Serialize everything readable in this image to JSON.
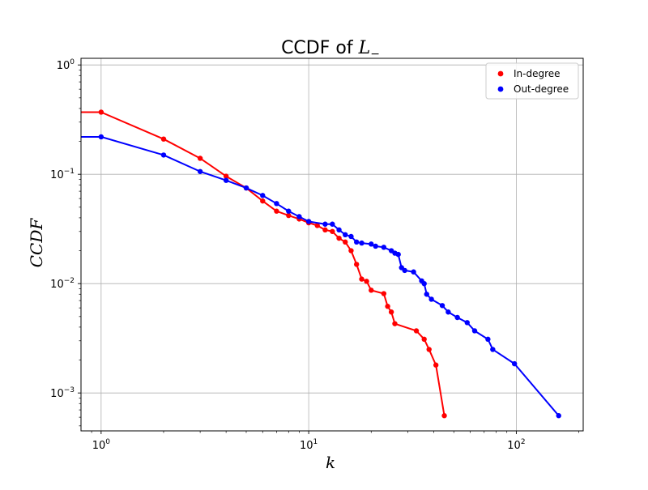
{
  "chart_data": {
    "type": "line",
    "title_text": "CCDF of ",
    "title_math": "L",
    "title_math_sub": "−",
    "xlabel": "k",
    "ylabel": "CCDF",
    "xscale": "log",
    "yscale": "log",
    "xlim": [
      0.8,
      210
    ],
    "ylim": [
      0.00045,
      1.15
    ],
    "grid": true,
    "legend_position": "top-right",
    "x_ticks": [
      {
        "value": 1,
        "base": "10",
        "exp": "0"
      },
      {
        "value": 10,
        "base": "10",
        "exp": "1"
      },
      {
        "value": 100,
        "base": "10",
        "exp": "2"
      }
    ],
    "y_ticks": [
      {
        "value": 1,
        "base": "10",
        "exp": "0"
      },
      {
        "value": 0.1,
        "base": "10",
        "exp": "−1"
      },
      {
        "value": 0.01,
        "base": "10",
        "exp": "−2"
      },
      {
        "value": 0.001,
        "base": "10",
        "exp": "−3"
      }
    ],
    "series": [
      {
        "name": "In-degree",
        "color": "#ff0000",
        "x": [
          1,
          2,
          3,
          4,
          5,
          6,
          7,
          8,
          9,
          10,
          11,
          12,
          13,
          14,
          15,
          16,
          17,
          18,
          19,
          20,
          23,
          24,
          25,
          26,
          33,
          36,
          38,
          41,
          45
        ],
        "y": [
          0.37,
          0.21,
          0.14,
          0.096,
          0.075,
          0.057,
          0.046,
          0.042,
          0.039,
          0.036,
          0.034,
          0.031,
          0.03,
          0.026,
          0.024,
          0.02,
          0.015,
          0.011,
          0.0105,
          0.0087,
          0.0081,
          0.0062,
          0.0055,
          0.0043,
          0.0037,
          0.0031,
          0.0025,
          0.0018,
          0.00062
        ],
        "edge_value": 0.37
      },
      {
        "name": "Out-degree",
        "color": "#0000ff",
        "x": [
          1,
          2,
          3,
          4,
          5,
          6,
          7,
          8,
          9,
          10,
          12,
          13,
          14,
          15,
          16,
          17,
          18,
          20,
          21,
          23,
          25,
          26,
          27,
          28,
          29,
          32,
          35,
          36,
          37,
          39,
          44,
          47,
          52,
          58,
          63,
          73,
          77,
          98,
          160
        ],
        "y": [
          0.22,
          0.15,
          0.106,
          0.088,
          0.075,
          0.064,
          0.054,
          0.046,
          0.041,
          0.037,
          0.035,
          0.035,
          0.031,
          0.028,
          0.027,
          0.024,
          0.0235,
          0.023,
          0.022,
          0.0215,
          0.02,
          0.019,
          0.0185,
          0.014,
          0.0132,
          0.0128,
          0.0106,
          0.01,
          0.008,
          0.0072,
          0.0063,
          0.0055,
          0.0049,
          0.0044,
          0.0037,
          0.0031,
          0.0025,
          0.00185,
          0.00062
        ],
        "edge_value": 0.22
      }
    ]
  }
}
